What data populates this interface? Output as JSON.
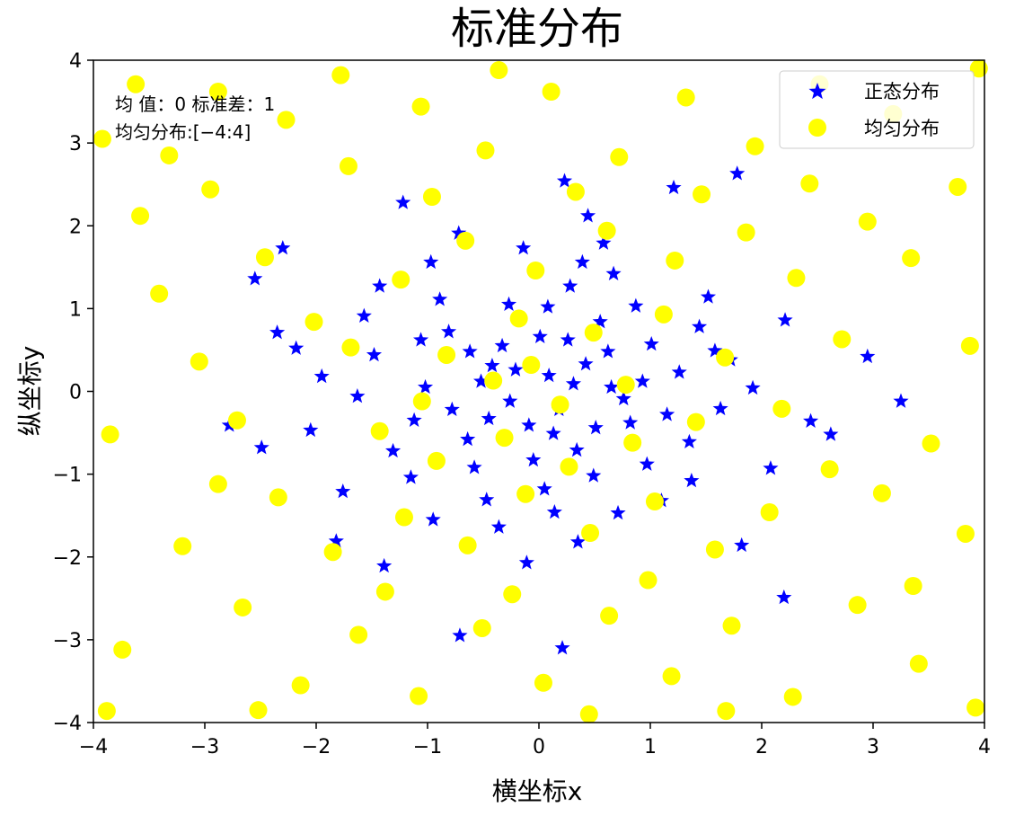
{
  "chart_data": {
    "type": "scatter",
    "title": "标准分布",
    "xlabel": "横坐标x",
    "ylabel": "纵坐标y",
    "xlim": [
      -4,
      4
    ],
    "ylim": [
      -4,
      4
    ],
    "xticks": [
      "−4",
      "−3",
      "−2",
      "−1",
      "0",
      "1",
      "2",
      "3",
      "4"
    ],
    "yticks": [
      "−4",
      "−3",
      "−2",
      "−1",
      "0",
      "1",
      "2",
      "3",
      "4"
    ],
    "grid": false,
    "legend_position": "top-right",
    "annotation_lines": [
      "均 值：0 标准差：1",
      "均匀分布:[−4:4]"
    ],
    "series": [
      {
        "name": "正态分布",
        "marker": "star",
        "color": "#0000ff",
        "distribution": "normal",
        "mean": 0,
        "std": 1,
        "points": [
          [
            -0.42,
            0.31
          ],
          [
            0.18,
            -0.22
          ],
          [
            0.55,
            0.84
          ],
          [
            -1.12,
            -0.35
          ],
          [
            0.93,
            0.12
          ],
          [
            -0.27,
            1.05
          ],
          [
            1.35,
            -0.61
          ],
          [
            -0.81,
            0.72
          ],
          [
            0.05,
            -1.18
          ],
          [
            -1.48,
            0.44
          ],
          [
            0.67,
            1.42
          ],
          [
            1.72,
            0.38
          ],
          [
            -0.58,
            -0.92
          ],
          [
            0.31,
            0.09
          ],
          [
            -2.05,
            -0.47
          ],
          [
            1.1,
            -1.32
          ],
          [
            -0.14,
            1.73
          ],
          [
            2.21,
            0.86
          ],
          [
            -1.76,
            -1.21
          ],
          [
            0.82,
            -0.38
          ],
          [
            -0.97,
            1.56
          ],
          [
            1.52,
            1.14
          ],
          [
            -0.36,
            -1.64
          ],
          [
            0.44,
            2.12
          ],
          [
            -2.35,
            0.71
          ],
          [
            2.62,
            -0.52
          ],
          [
            -0.11,
            -2.07
          ],
          [
            1.21,
            2.46
          ],
          [
            -1.39,
            -2.11
          ],
          [
            3.25,
            -0.12
          ],
          [
            -2.78,
            -0.41
          ],
          [
            0.23,
            2.54
          ],
          [
            -1.22,
            2.28
          ],
          [
            1.82,
            -1.86
          ],
          [
            -2.55,
            1.36
          ],
          [
            2.95,
            0.42
          ],
          [
            0.21,
            -3.1
          ],
          [
            -2.3,
            1.73
          ],
          [
            1.78,
            2.63
          ],
          [
            -0.71,
            -2.95
          ],
          [
            2.2,
            -2.49
          ],
          [
            -1.82,
            -1.81
          ],
          [
            0.62,
            0.48
          ],
          [
            -0.52,
            0.12
          ],
          [
            0.01,
            0.66
          ],
          [
            0.34,
            -0.71
          ],
          [
            -0.78,
            -0.22
          ],
          [
            1.01,
            0.57
          ],
          [
            -1.02,
            0.05
          ],
          [
            0.13,
            -0.51
          ],
          [
            0.49,
            -1.02
          ],
          [
            -0.33,
            0.55
          ],
          [
            0.76,
            -0.09
          ],
          [
            -0.64,
            -0.58
          ],
          [
            1.26,
            0.23
          ],
          [
            -1.31,
            -0.72
          ],
          [
            0.28,
            1.27
          ],
          [
            -0.05,
            -0.83
          ],
          [
            1.63,
            -0.21
          ],
          [
            -1.57,
            0.91
          ],
          [
            0.97,
            -0.88
          ],
          [
            -0.21,
            0.26
          ],
          [
            0.42,
            0.33
          ],
          [
            -0.89,
            1.11
          ],
          [
            1.44,
            0.78
          ],
          [
            -1.15,
            -1.04
          ],
          [
            0.08,
            1.02
          ],
          [
            0.71,
            -1.47
          ],
          [
            -0.47,
            -1.31
          ],
          [
            1.92,
            0.04
          ],
          [
            -1.95,
            0.18
          ],
          [
            0.58,
            1.79
          ],
          [
            -0.72,
            1.91
          ],
          [
            1.37,
            -1.08
          ],
          [
            -1.63,
            -0.06
          ],
          [
            2.08,
            -0.93
          ],
          [
            -2.18,
            0.52
          ],
          [
            0.35,
            -1.82
          ],
          [
            -0.26,
            -0.12
          ],
          [
            0.09,
            0.19
          ],
          [
            -0.09,
            -0.41
          ],
          [
            0.26,
            0.62
          ],
          [
            0.65,
            0.05
          ],
          [
            -0.45,
            -0.33
          ],
          [
            0.51,
            -0.44
          ],
          [
            -0.62,
            0.48
          ],
          [
            1.15,
            -0.28
          ],
          [
            -1.06,
            0.62
          ],
          [
            0.14,
            -1.46
          ],
          [
            0.87,
            1.03
          ],
          [
            -0.95,
            -1.55
          ],
          [
            1.58,
            0.49
          ],
          [
            -1.43,
            1.27
          ],
          [
            2.44,
            -0.36
          ],
          [
            -2.49,
            -0.68
          ],
          [
            0.39,
            1.56
          ]
        ]
      },
      {
        "name": "均匀分布",
        "marker": "circle",
        "color": "#ffff00",
        "distribution": "uniform",
        "range": [
          -4,
          4
        ],
        "points": [
          [
            -3.62,
            3.71
          ],
          [
            -2.95,
            2.44
          ],
          [
            -3.41,
            1.18
          ],
          [
            -3.85,
            -0.52
          ],
          [
            -3.2,
            -1.87
          ],
          [
            -3.74,
            -3.12
          ],
          [
            -2.66,
            -2.61
          ],
          [
            -2.14,
            -3.55
          ],
          [
            -1.62,
            -2.94
          ],
          [
            -1.08,
            -3.68
          ],
          [
            -0.51,
            -2.86
          ],
          [
            0.04,
            -3.52
          ],
          [
            0.63,
            -2.71
          ],
          [
            1.19,
            -3.44
          ],
          [
            1.73,
            -2.83
          ],
          [
            2.28,
            -3.69
          ],
          [
            2.86,
            -2.58
          ],
          [
            3.41,
            -3.29
          ],
          [
            3.83,
            -1.72
          ],
          [
            3.52,
            -0.63
          ],
          [
            3.87,
            0.55
          ],
          [
            3.34,
            1.61
          ],
          [
            3.76,
            2.47
          ],
          [
            3.18,
            3.35
          ],
          [
            2.52,
            3.71
          ],
          [
            1.94,
            2.96
          ],
          [
            1.32,
            3.55
          ],
          [
            0.72,
            2.83
          ],
          [
            0.11,
            3.62
          ],
          [
            -0.48,
            2.91
          ],
          [
            -1.06,
            3.44
          ],
          [
            -1.71,
            2.72
          ],
          [
            -2.27,
            3.28
          ],
          [
            -2.88,
            3.62
          ],
          [
            -3.32,
            2.85
          ],
          [
            -2.46,
            1.62
          ],
          [
            -2.02,
            0.84
          ],
          [
            -2.71,
            -0.35
          ],
          [
            -2.34,
            -1.28
          ],
          [
            -1.85,
            -1.94
          ],
          [
            -1.21,
            -1.52
          ],
          [
            -0.64,
            -1.86
          ],
          [
            -0.12,
            -1.24
          ],
          [
            0.46,
            -1.71
          ],
          [
            1.04,
            -1.33
          ],
          [
            1.58,
            -1.91
          ],
          [
            2.07,
            -1.46
          ],
          [
            2.61,
            -0.94
          ],
          [
            2.18,
            -0.21
          ],
          [
            2.72,
            0.63
          ],
          [
            2.31,
            1.37
          ],
          [
            1.86,
            1.92
          ],
          [
            1.22,
            1.58
          ],
          [
            0.61,
            1.94
          ],
          [
            -0.03,
            1.46
          ],
          [
            -0.66,
            1.82
          ],
          [
            -1.24,
            1.35
          ],
          [
            -1.69,
            0.53
          ],
          [
            -1.43,
            -0.48
          ],
          [
            -0.92,
            -0.84
          ],
          [
            -0.31,
            -0.56
          ],
          [
            0.27,
            -0.91
          ],
          [
            0.84,
            -0.62
          ],
          [
            1.41,
            -0.37
          ],
          [
            1.67,
            0.41
          ],
          [
            1.12,
            0.93
          ],
          [
            0.49,
            0.71
          ],
          [
            -0.18,
            0.88
          ],
          [
            -0.83,
            0.44
          ],
          [
            -1.05,
            -0.12
          ],
          [
            -0.41,
            0.13
          ],
          [
            0.19,
            -0.16
          ],
          [
            0.78,
            0.08
          ],
          [
            -0.07,
            0.32
          ],
          [
            -3.05,
            0.36
          ],
          [
            -3.58,
            2.12
          ],
          [
            3.08,
            -1.23
          ],
          [
            2.95,
            2.05
          ],
          [
            -1.38,
            -2.42
          ],
          [
            0.98,
            -2.28
          ],
          [
            -0.24,
            -2.45
          ],
          [
            1.46,
            2.38
          ],
          [
            -0.96,
            2.35
          ],
          [
            0.33,
            2.41
          ],
          [
            -3.92,
            3.05
          ],
          [
            3.92,
            -3.82
          ],
          [
            -3.88,
            -3.86
          ],
          [
            3.95,
            3.9
          ],
          [
            -2.52,
            -3.85
          ],
          [
            2.43,
            2.51
          ],
          [
            -2.88,
            -1.12
          ],
          [
            3.36,
            -2.35
          ],
          [
            -1.78,
            3.82
          ],
          [
            1.68,
            -3.86
          ],
          [
            -0.36,
            3.88
          ],
          [
            0.45,
            -3.9
          ]
        ]
      }
    ]
  }
}
